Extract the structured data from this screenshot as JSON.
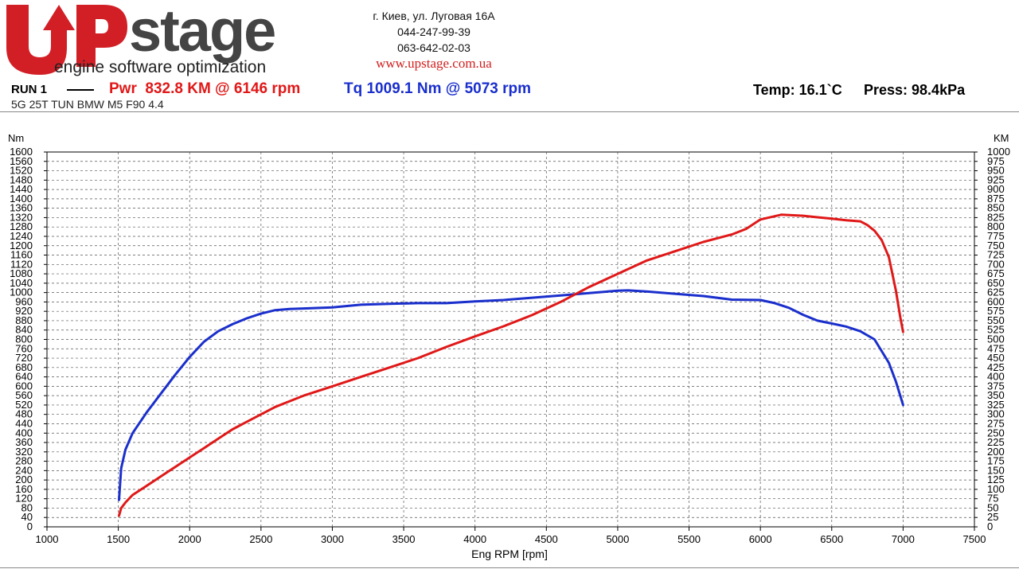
{
  "header": {
    "logo_text": "UPstage",
    "logo_tagline": "engine software optimization",
    "address": "г. Киев, ул. Луговая 16А",
    "phone1": "044-247-99-39",
    "phone2": "063-642-02-03",
    "website": "www.upstage.com.ua"
  },
  "run": {
    "label": "RUN 1",
    "pwr_text": "Pwr  832.8 KM @ 6146 rpm",
    "tq_text": "Tq 1009.1 Nm @ 5073 rpm",
    "temp_text": "Temp: 16.1`C",
    "press_text": "Press: 98.4kPa",
    "subtitle": "5G 25T TUN BMW M5 F90 4.4"
  },
  "colors": {
    "power": "#e01818",
    "torque": "#1a2fcc",
    "logo_red": "#d21f26",
    "logo_grey": "#444444"
  },
  "chart_data": {
    "type": "line",
    "title": "",
    "xlabel": "Eng RPM [rpm]",
    "ylabel_left": "Nm",
    "ylabel_right": "KM",
    "xlim": [
      1000,
      7500
    ],
    "ylim_left": [
      0,
      1600
    ],
    "ylim_right": [
      0,
      1000
    ],
    "grid": true,
    "x_ticks": [
      1000,
      1500,
      2000,
      2500,
      3000,
      3500,
      4000,
      4500,
      5000,
      5500,
      6000,
      6500,
      7000,
      7500
    ],
    "y_left_ticks": [
      0,
      40,
      80,
      120,
      160,
      200,
      240,
      280,
      320,
      360,
      400,
      440,
      480,
      520,
      560,
      600,
      640,
      680,
      720,
      760,
      800,
      840,
      880,
      920,
      960,
      1000,
      1040,
      1080,
      1120,
      1160,
      1200,
      1240,
      1280,
      1320,
      1360,
      1400,
      1440,
      1480,
      1520,
      1560,
      1600
    ],
    "y_right_ticks": [
      0,
      25,
      50,
      75,
      100,
      125,
      150,
      175,
      200,
      225,
      250,
      275,
      300,
      325,
      350,
      375,
      400,
      425,
      450,
      475,
      500,
      525,
      550,
      575,
      600,
      625,
      650,
      675,
      700,
      725,
      750,
      775,
      800,
      825,
      850,
      875,
      900,
      925,
      950,
      975,
      1000
    ],
    "series": [
      {
        "name": "Tq",
        "axis": "left",
        "x": [
          1505,
          1520,
          1550,
          1600,
          1700,
          1800,
          1900,
          2000,
          2100,
          2200,
          2300,
          2400,
          2500,
          2600,
          2700,
          2800,
          3000,
          3200,
          3400,
          3600,
          3800,
          4000,
          4200,
          4400,
          4600,
          4800,
          5000,
          5073,
          5200,
          5400,
          5600,
          5800,
          6000,
          6100,
          6200,
          6300,
          6400,
          6500,
          6600,
          6700,
          6800,
          6900,
          6950,
          6980,
          7000
        ],
        "y": [
          115,
          250,
          330,
          400,
          490,
          570,
          650,
          725,
          790,
          835,
          865,
          890,
          910,
          925,
          930,
          932,
          937,
          948,
          952,
          955,
          955,
          962,
          968,
          978,
          988,
          998,
          1008,
          1009.1,
          1005,
          995,
          985,
          970,
          968,
          955,
          935,
          905,
          880,
          868,
          855,
          835,
          800,
          700,
          620,
          560,
          520
        ]
      },
      {
        "name": "Pwr",
        "axis": "right",
        "x": [
          1505,
          1520,
          1550,
          1600,
          1700,
          1800,
          1900,
          2000,
          2100,
          2200,
          2300,
          2400,
          2500,
          2600,
          2800,
          3000,
          3200,
          3400,
          3600,
          3800,
          4000,
          4200,
          4400,
          4600,
          4800,
          5000,
          5200,
          5400,
          5600,
          5800,
          5900,
          6000,
          6146,
          6300,
          6400,
          6500,
          6600,
          6700,
          6750,
          6800,
          6850,
          6900,
          6950,
          6980,
          7000
        ],
        "y": [
          30,
          50,
          65,
          85,
          110,
          135,
          160,
          185,
          210,
          235,
          260,
          280,
          300,
          320,
          350,
          375,
          400,
          425,
          450,
          480,
          508,
          535,
          565,
          600,
          640,
          675,
          710,
          735,
          760,
          780,
          795,
          820,
          832.8,
          830,
          826,
          822,
          818,
          815,
          805,
          790,
          765,
          720,
          630,
          560,
          520
        ]
      }
    ]
  }
}
